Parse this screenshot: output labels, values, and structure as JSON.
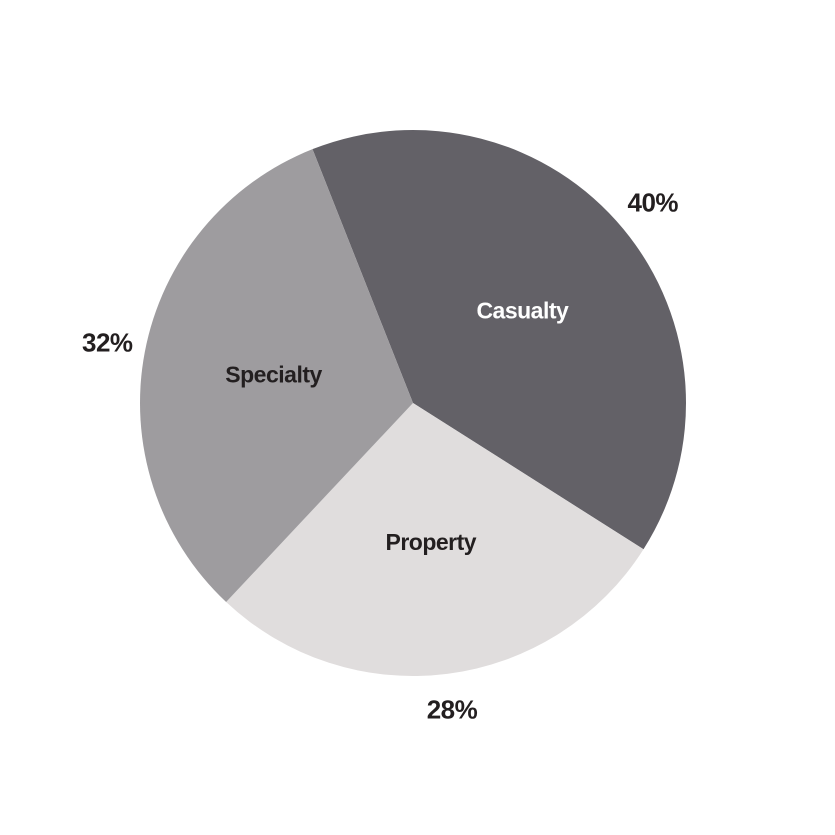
{
  "chart_data": {
    "type": "pie",
    "categories": [
      "Casualty",
      "Property",
      "Specialty"
    ],
    "values": [
      40,
      28,
      32
    ],
    "value_labels": [
      "40%",
      "28%",
      "32%"
    ],
    "colors": [
      "#636167",
      "#e0dddd",
      "#9e9c9f"
    ]
  }
}
